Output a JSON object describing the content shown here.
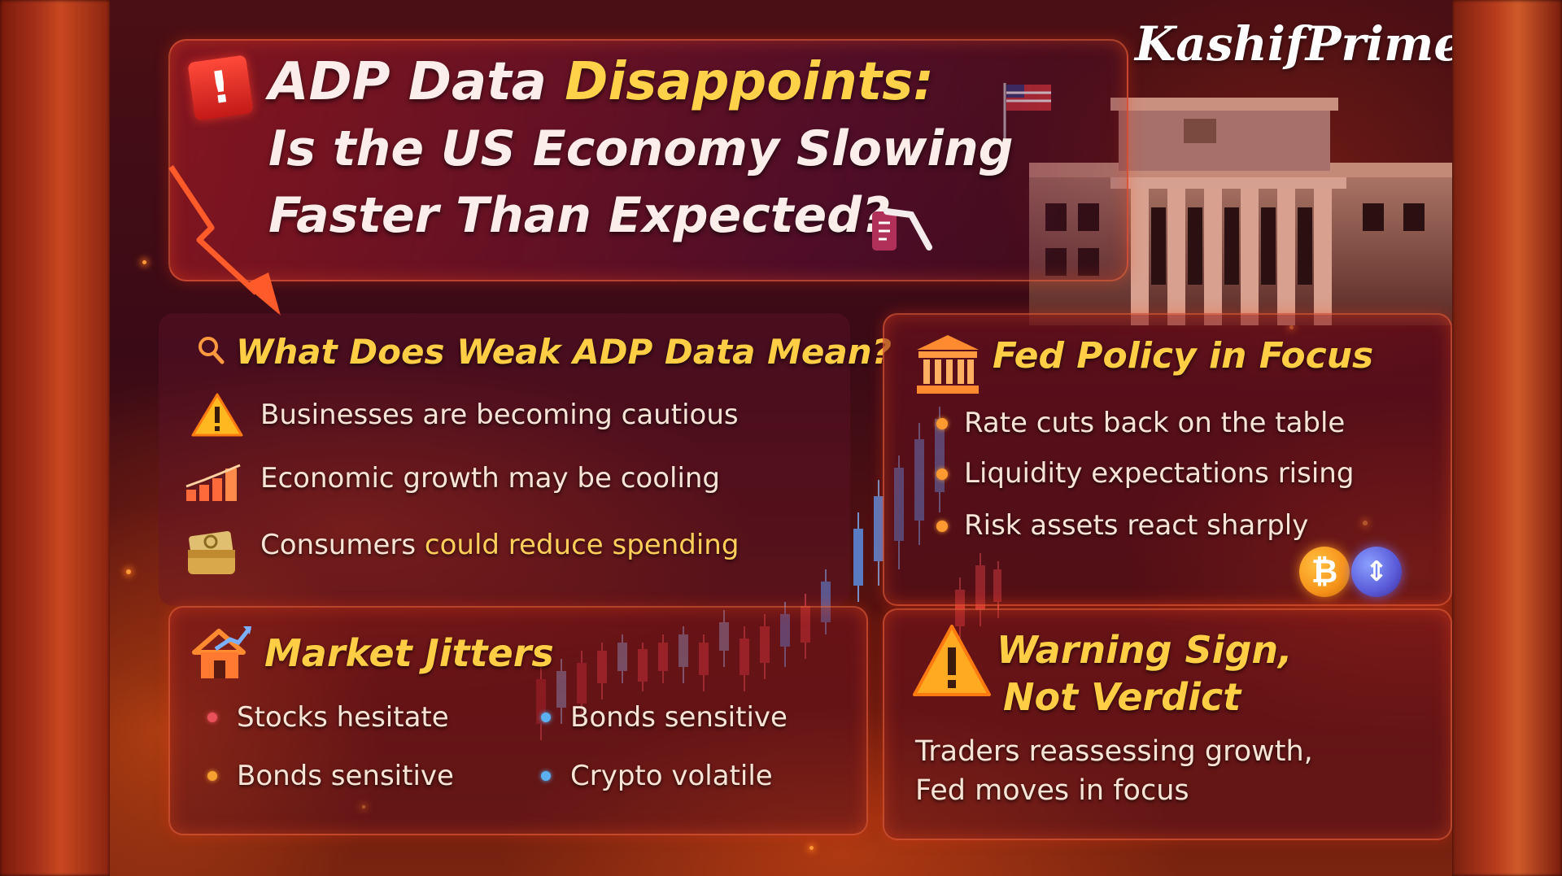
{
  "brand": "KashifPrime",
  "headline": {
    "line1_prefix": "ADP Data ",
    "line1_highlight": "Disappoints:",
    "line2": "Is the US Economy Slowing",
    "line3": "Faster Than Expected?"
  },
  "weak_adp": {
    "title": "What Does Weak ADP Data Mean?",
    "items": [
      {
        "icon": "warning-icon",
        "text": "Businesses are becoming cautious"
      },
      {
        "icon": "bar-chart-icon",
        "text": "Economic growth may be cooling"
      },
      {
        "icon": "wallet-icon",
        "text_prefix": "Consumers ",
        "text_highlight": "could reduce spending"
      }
    ]
  },
  "fed_policy": {
    "title": "Fed Policy in Focus",
    "icon": "bank-icon",
    "items": [
      "Rate cuts back on the table",
      "Liquidity expectations rising",
      "Risk assets react sharply"
    ]
  },
  "market_jitters": {
    "title": "Market Jitters",
    "icon": "house-chart-icon",
    "items": [
      {
        "text": "Stocks hesitate",
        "color": "#e8505a"
      },
      {
        "text": "Bonds sensitive",
        "color": "#5ab0f0"
      },
      {
        "text": "Bonds sensitive",
        "color": "#f5a030"
      },
      {
        "text": "Crypto volatile",
        "color": "#5ab0f0"
      }
    ]
  },
  "warning": {
    "title_line1": "Warning Sign,",
    "title_line2": "Not Verdict",
    "body_line1": "Traders reassessing growth,",
    "body_line2": "Fed moves in focus"
  },
  "colors": {
    "accent_yellow": "#ffce45",
    "text_light": "#f6e4d6",
    "bitcoin": "#f7931a",
    "frame_glow": "#ff6e3c"
  },
  "crypto_icons": [
    "bitcoin-icon",
    "ethereum-icon"
  ]
}
